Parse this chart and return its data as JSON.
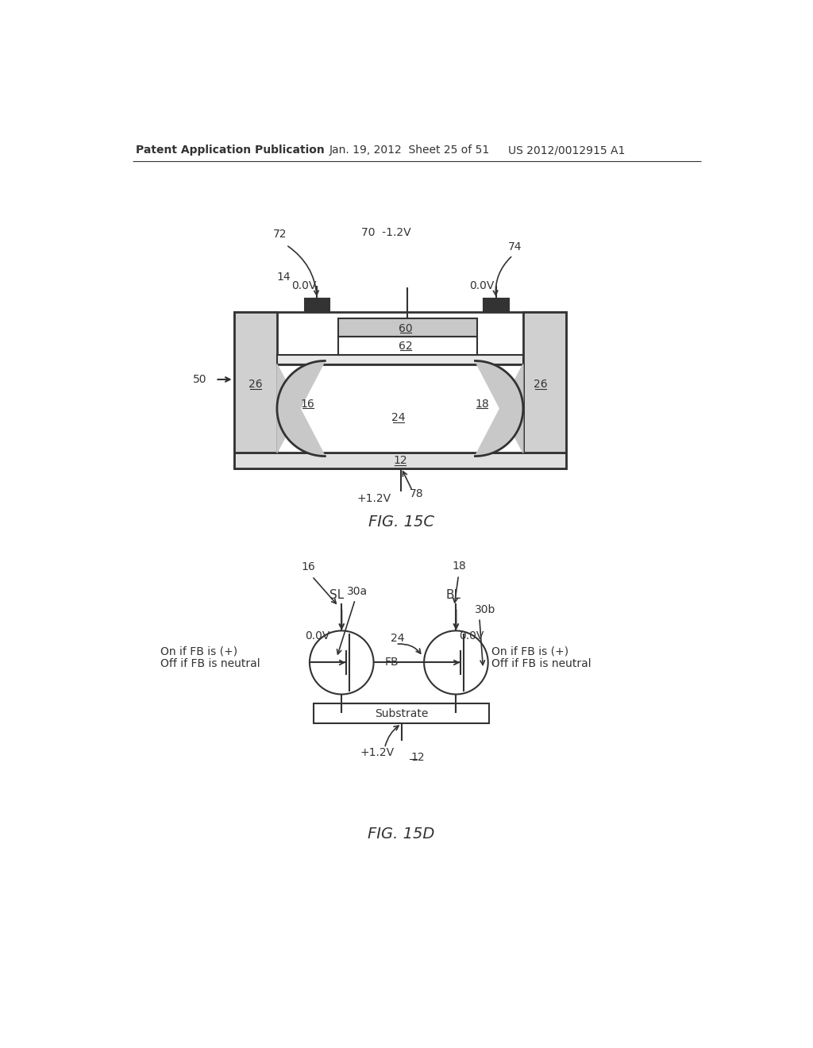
{
  "bg_color": "#ffffff",
  "header_left": "Patent Application Publication",
  "header_mid": "Jan. 19, 2012  Sheet 25 of 51",
  "header_right": "US 2012/0012915 A1",
  "fig15c_label": "FIG. 15C",
  "fig15d_label": "FIG. 15D",
  "line_color": "#333333",
  "text_color": "#333333"
}
